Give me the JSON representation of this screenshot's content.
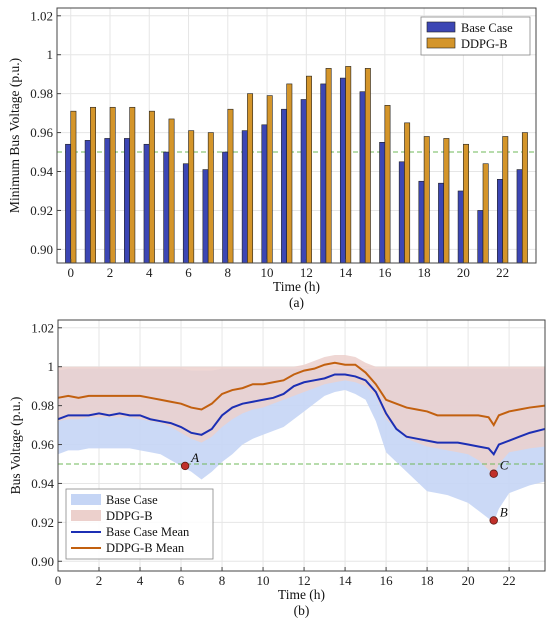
{
  "chart_data": [
    {
      "type": "bar",
      "xlabel": "Time (h)",
      "ylabel": "Minimum Bus Voltage (p.u.)",
      "caption": "(a)",
      "x": [
        0,
        1,
        2,
        3,
        4,
        5,
        6,
        7,
        8,
        9,
        10,
        11,
        12,
        13,
        14,
        15,
        16,
        17,
        18,
        19,
        20,
        21,
        22,
        23
      ],
      "xticks": [
        0,
        2,
        4,
        6,
        8,
        10,
        12,
        14,
        16,
        18,
        20,
        22
      ],
      "xtick_labels": [
        "0",
        "2",
        "4",
        "6",
        "8",
        "10",
        "12",
        "14",
        "16",
        "18",
        "20",
        "22"
      ],
      "yticks": [
        0.9,
        0.92,
        0.94,
        0.96,
        0.98,
        1.0,
        1.02
      ],
      "ytick_labels": [
        "0.90",
        "0.92",
        "0.94",
        "0.96",
        "0.98",
        "1",
        "1.02"
      ],
      "ylim": [
        0.893,
        1.024
      ],
      "xlim": [
        -0.7,
        23.7
      ],
      "reference_line": 0.95,
      "legend_position": "top-right",
      "series": [
        {
          "name": "Base Case",
          "color": "#3c46b4",
          "values": [
            0.954,
            0.956,
            0.957,
            0.957,
            0.954,
            0.95,
            0.944,
            0.941,
            0.95,
            0.961,
            0.964,
            0.972,
            0.977,
            0.985,
            0.988,
            0.981,
            0.955,
            0.945,
            0.935,
            0.934,
            0.93,
            0.92,
            0.936,
            0.941
          ]
        },
        {
          "name": "DDPG-B",
          "color": "#d4952a",
          "values": [
            0.971,
            0.973,
            0.973,
            0.973,
            0.971,
            0.967,
            0.961,
            0.96,
            0.972,
            0.98,
            0.979,
            0.985,
            0.989,
            0.993,
            0.994,
            0.993,
            0.974,
            0.965,
            0.958,
            0.957,
            0.954,
            0.944,
            0.958,
            0.96
          ]
        }
      ]
    },
    {
      "type": "area",
      "xlabel": "Time (h)",
      "ylabel": "Bus Voltage (p.u.)",
      "caption": "(b)",
      "xticks": [
        0,
        2,
        4,
        6,
        8,
        10,
        12,
        14,
        16,
        18,
        20,
        22
      ],
      "xtick_labels": [
        "0",
        "2",
        "4",
        "6",
        "8",
        "10",
        "12",
        "14",
        "16",
        "18",
        "20",
        "22"
      ],
      "yticks": [
        0.9,
        0.92,
        0.94,
        0.96,
        0.98,
        1.0,
        1.02
      ],
      "ytick_labels": [
        "0.90",
        "0.92",
        "0.94",
        "0.96",
        "0.98",
        "1",
        "1.02"
      ],
      "ylim": [
        0.895,
        1.024
      ],
      "xlim": [
        0,
        23.75
      ],
      "reference_line": 0.95,
      "legend_position": "bottom-left",
      "x": [
        0,
        0.5,
        1,
        1.5,
        2,
        2.5,
        3,
        3.5,
        4,
        4.5,
        5,
        5.5,
        6,
        6.5,
        7,
        7.5,
        8,
        8.5,
        9,
        9.5,
        10,
        10.5,
        11,
        11.5,
        12,
        12.5,
        13,
        13.5,
        14,
        14.5,
        15,
        15.5,
        16,
        16.5,
        17,
        17.5,
        18,
        18.5,
        19,
        19.5,
        20,
        20.5,
        21,
        21.25,
        21.5,
        22,
        22.5,
        23,
        23.75
      ],
      "series": [
        {
          "name": "Base Case",
          "color": "#c5d5f5",
          "kind": "band",
          "upper": [
            0.998,
            0.999,
            0.999,
            0.999,
            0.999,
            0.999,
            0.999,
            0.999,
            0.999,
            0.999,
            0.999,
            0.999,
            0.999,
            0.998,
            0.998,
            0.998,
            0.999,
            0.999,
            0.999,
            0.999,
            0.999,
            0.999,
            0.999,
            0.999,
            0.999,
            0.999,
            0.999,
            0.999,
            0.999,
            0.999,
            0.999,
            0.999,
            0.999,
            0.999,
            0.999,
            0.999,
            0.999,
            0.999,
            0.999,
            0.999,
            0.999,
            0.999,
            0.999,
            0.999,
            0.999,
            0.999,
            0.999,
            0.999,
            0.999
          ],
          "lower": [
            0.955,
            0.957,
            0.957,
            0.958,
            0.958,
            0.958,
            0.958,
            0.958,
            0.957,
            0.956,
            0.955,
            0.952,
            0.949,
            0.946,
            0.942,
            0.946,
            0.951,
            0.955,
            0.96,
            0.963,
            0.965,
            0.967,
            0.969,
            0.973,
            0.977,
            0.981,
            0.985,
            0.987,
            0.988,
            0.986,
            0.983,
            0.972,
            0.956,
            0.951,
            0.946,
            0.941,
            0.936,
            0.935,
            0.934,
            0.932,
            0.93,
            0.926,
            0.922,
            0.92,
            0.927,
            0.935,
            0.937,
            0.939,
            0.941
          ]
        },
        {
          "name": "DDPG-B",
          "color": "#ecd0cc",
          "kind": "band",
          "upper": [
            1.0,
            1.0,
            1.0,
            1.0,
            1.0,
            1.0,
            1.0,
            1.0,
            1.0,
            1.0,
            1.0,
            1.0,
            1.0,
            1.0,
            1.0,
            1.0,
            1.0,
            1.0,
            1.0,
            1.0,
            1.0,
            1.0,
            1.0,
            1.0,
            1.001,
            1.003,
            1.005,
            1.006,
            1.006,
            1.005,
            1.002,
            1.0,
            1.0,
            1.0,
            1.0,
            1.0,
            1.0,
            1.0,
            1.0,
            1.0,
            1.0,
            1.0,
            1.0,
            1.0,
            1.0,
            1.0,
            1.0,
            1.0,
            1.0
          ],
          "lower": [
            0.972,
            0.973,
            0.973,
            0.974,
            0.974,
            0.974,
            0.974,
            0.974,
            0.973,
            0.972,
            0.971,
            0.969,
            0.966,
            0.963,
            0.961,
            0.964,
            0.969,
            0.973,
            0.976,
            0.978,
            0.979,
            0.981,
            0.983,
            0.985,
            0.987,
            0.989,
            0.991,
            0.992,
            0.993,
            0.992,
            0.99,
            0.985,
            0.973,
            0.968,
            0.963,
            0.961,
            0.959,
            0.958,
            0.957,
            0.956,
            0.955,
            0.952,
            0.947,
            0.944,
            0.95,
            0.956,
            0.957,
            0.958,
            0.959
          ]
        },
        {
          "name": "Base Case Mean",
          "color": "#1c2fb4",
          "kind": "line",
          "values": [
            0.973,
            0.975,
            0.975,
            0.975,
            0.976,
            0.975,
            0.976,
            0.975,
            0.975,
            0.973,
            0.972,
            0.971,
            0.969,
            0.966,
            0.965,
            0.968,
            0.975,
            0.979,
            0.981,
            0.982,
            0.983,
            0.984,
            0.986,
            0.99,
            0.992,
            0.993,
            0.994,
            0.996,
            0.996,
            0.995,
            0.993,
            0.987,
            0.976,
            0.968,
            0.964,
            0.963,
            0.962,
            0.961,
            0.961,
            0.961,
            0.96,
            0.959,
            0.958,
            0.955,
            0.96,
            0.962,
            0.964,
            0.966,
            0.968
          ]
        },
        {
          "name": "DDPG-B Mean",
          "color": "#c2600f",
          "kind": "line",
          "values": [
            0.984,
            0.985,
            0.984,
            0.985,
            0.985,
            0.985,
            0.985,
            0.985,
            0.985,
            0.984,
            0.983,
            0.982,
            0.981,
            0.979,
            0.978,
            0.981,
            0.986,
            0.988,
            0.989,
            0.991,
            0.991,
            0.992,
            0.993,
            0.996,
            0.998,
            0.999,
            1.001,
            1.002,
            1.001,
            1.001,
            0.997,
            0.991,
            0.983,
            0.981,
            0.979,
            0.978,
            0.977,
            0.975,
            0.975,
            0.975,
            0.975,
            0.975,
            0.974,
            0.97,
            0.975,
            0.977,
            0.978,
            0.979,
            0.98
          ]
        }
      ],
      "annotations": [
        {
          "label": "A",
          "x": 6.2,
          "y": 0.949
        },
        {
          "label": "B",
          "x": 21.25,
          "y": 0.921
        },
        {
          "label": "C",
          "x": 21.25,
          "y": 0.945
        }
      ]
    }
  ]
}
